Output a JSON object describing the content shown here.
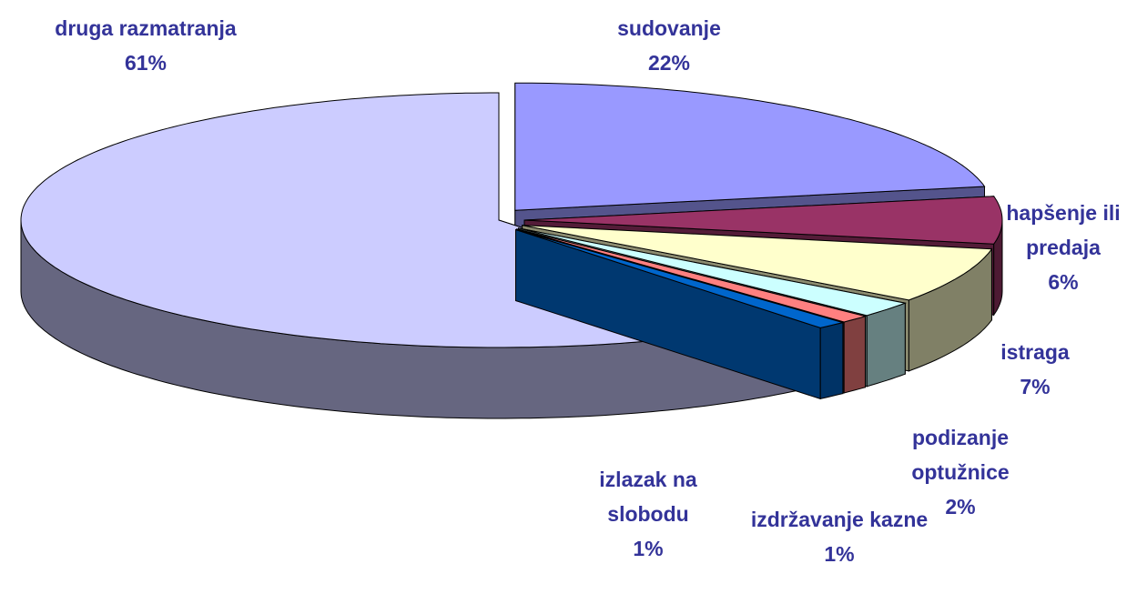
{
  "chart_data": {
    "type": "pie3d",
    "categories": [
      "sudovanje",
      "hapšenje ili predaja",
      "istraga",
      "podizanje optužnice",
      "izdržavanje kazne",
      "izlazak na slobodu",
      "druga razmatranja"
    ],
    "values": [
      22,
      6,
      7,
      2,
      1,
      1,
      61
    ],
    "value_labels": [
      "22%",
      "6%",
      "7%",
      "2%",
      "1%",
      "1%",
      "61%"
    ],
    "colors": [
      "#9999ff",
      "#993366",
      "#ffffcc",
      "#ccffff",
      "#ff8080",
      "#0066cc",
      "#ccccff"
    ]
  }
}
